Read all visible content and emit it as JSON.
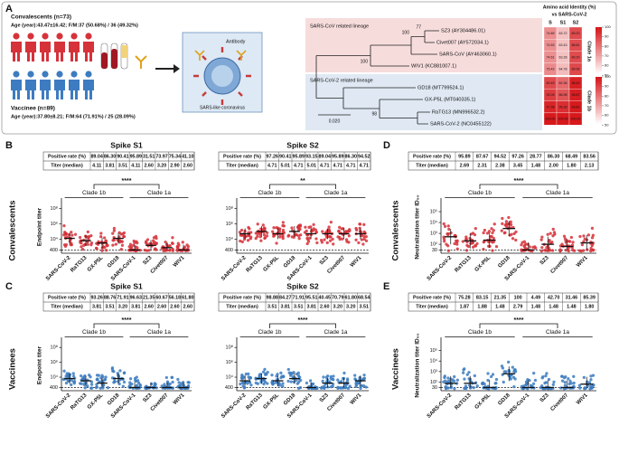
{
  "panel_a": {
    "letter": "A",
    "convalescents": {
      "title": "Convalescents (n=73)",
      "demographics": "Age (year):43.47±16.42; F/M:37 (50.68%) / 36 (49.32%)",
      "color": "#d6323a"
    },
    "vaccinees": {
      "title": "Vaccinee (n=89)",
      "demographics": "Age (year):37.80±8.21; F/M:64 (71.91%) / 25 (28.09%)",
      "color": "#3d7cc0"
    },
    "antibody_label": "Antibody",
    "virus_label": "SARS-like coronavirus",
    "tree": {
      "lineages": [
        "SARS-CoV related lineage",
        "SARS-CoV-2 related lineage"
      ],
      "leaves": [
        "SZ3 (AY304486.01)",
        "Civet007 (AY572034.1)",
        "SARS-CoV (AY463060.1)",
        "WIV1 (KC881007.1)",
        "GD18 (MT799524.1)",
        "GX-P5L (MT040335.1)",
        "RaTG13 (MN996532.2)",
        "SARS-CoV-2 (NC0455122)"
      ],
      "bootstraps": [
        "77",
        "100",
        "100",
        "98"
      ],
      "scale_bar": "0.020"
    },
    "identity": {
      "title_lines": [
        "Amino acid Identity (%)",
        "vs SARS-CoV-2"
      ],
      "columns": [
        "S",
        "S1",
        "S2"
      ],
      "clades": [
        "Clade 1a",
        "Clade 1b"
      ],
      "rows": [
        [
          "74.89",
          "63.72",
          "89.20"
        ],
        [
          "74.53",
          "63.43",
          "88.81"
        ],
        [
          "74.61",
          "63.28",
          "89.20"
        ],
        [
          "75.42",
          "64.78",
          "89.56"
        ],
        [
          "89.49",
          "82.36",
          "98.40"
        ],
        [
          "92.09",
          "86.98",
          "98.87"
        ],
        [
          "97.38",
          "95.33",
          "99.81"
        ],
        [
          "100.00",
          "100.00",
          "100.00"
        ]
      ],
      "scale": {
        "lim": [
          50,
          100
        ],
        "ticks": [
          100,
          90,
          80,
          70,
          60,
          50
        ],
        "color": "#d7191c"
      }
    }
  },
  "panels": [
    {
      "letter": "B",
      "group": "Convalescents",
      "ylabel": "Endpoint titer",
      "color": "#d6323a",
      "charts": [
        {
          "title": "Spike S1",
          "significance": "****",
          "clades": [
            "Clade 1b",
            "Clade 1a"
          ],
          "categories": [
            "SARS-CoV-2",
            "RaTG13",
            "GX-P5L",
            "GD18",
            "SARS-CoV-1",
            "SZ3",
            "Civet007",
            "WIV1"
          ],
          "table": {
            "rate_label": "Positive rate (%)",
            "rates": [
              "89.04",
              "86.30",
              "90.41",
              "95.89",
              "31.51",
              "73.97",
              "75.34",
              "41.10"
            ],
            "titer_label": "Titer (median)",
            "titers": [
              "4.11",
              "3.81",
              "3.51",
              "4.11",
              "2.60",
              "3.20",
              "2.90",
              "2.60"
            ]
          },
          "log": true,
          "ylim": [
            150,
            1000000000
          ],
          "yticks": [
            {
              "value": 100000000,
              "label": "10⁸"
            },
            {
              "value": 1000000,
              "label": "10⁶"
            },
            {
              "value": 10000,
              "label": "10⁴"
            },
            400
          ]
        },
        {
          "title": "Spike S2",
          "significance": "**",
          "clades": [
            "Clade 1b",
            "Clade 1a"
          ],
          "categories": [
            "SARS-CoV-2",
            "RaTG13",
            "GX-P5L",
            "GD18",
            "SARS-CoV-1",
            "SZ3",
            "Civet007",
            "WIV1"
          ],
          "table": {
            "rate_label": "Positive rate (%)",
            "rates": [
              "97.26",
              "90.41",
              "95.89",
              "93.15",
              "89.04",
              "95.89",
              "86.30",
              "94.52"
            ],
            "titer_label": "Titer (median)",
            "titers": [
              "4.71",
              "5.01",
              "4.71",
              "5.01",
              "4.71",
              "4.71",
              "4.71",
              "4.71"
            ]
          },
          "log": true,
          "ylim": [
            150,
            1000000000
          ],
          "yticks": [
            {
              "value": 100000000,
              "label": "10⁸"
            },
            {
              "value": 1000000,
              "label": "10⁶"
            },
            {
              "value": 10000,
              "label": "10⁴"
            },
            400
          ]
        }
      ]
    },
    {
      "letter": "D",
      "group": "Convalescents",
      "ylabel": "Neutralization titer ID₅₀",
      "color": "#d6323a",
      "charts": [
        {
          "significance": "****",
          "clades": [
            "Clade 1b",
            "Clade 1a"
          ],
          "categories": [
            "SARS-CoV-2",
            "RaTG13",
            "GX-P5L",
            "GD18",
            "SARS-CoV-1",
            "SZ3",
            "Civet007",
            "WIV1"
          ],
          "table": {
            "rate_label": "Positive rate (%)",
            "rates": [
              "95.89",
              "87.67",
              "94.52",
              "97.26",
              "28.77",
              "86.30",
              "68.49",
              "83.56"
            ],
            "titer_label": "Titer (median)",
            "titers": [
              "2.69",
              "2.31",
              "2.38",
              "3.45",
              "1.48",
              "2.00",
              "1.80",
              "2.13"
            ]
          },
          "log": true,
          "ylim": [
            15,
            1000000
          ],
          "yticks": [
            {
              "value": 100000,
              "label": "10⁵"
            },
            {
              "value": 10000,
              "label": "10⁴"
            },
            {
              "value": 1000,
              "label": "10³"
            },
            {
              "value": 100,
              "label": "10²"
            },
            30
          ]
        }
      ]
    },
    {
      "letter": "C",
      "group": "Vaccinees",
      "ylabel": "Endpoint titer",
      "color": "#3d7cc0",
      "charts": [
        {
          "title": "Spike S1",
          "significance": "****",
          "clades": [
            "Clade 1b",
            "Clade 1a"
          ],
          "categories": [
            "SARS-CoV-2",
            "RaTG13",
            "GX-P5L",
            "GD18",
            "SARS-CoV-1",
            "SZ3",
            "Civet007",
            "WIV1"
          ],
          "table": {
            "rate_label": "Positive rate (%)",
            "rates": [
              "93.26",
              "88.76",
              "71.91",
              "96.63",
              "21.35",
              "60.67",
              "56.18",
              "61.80"
            ],
            "titer_label": "Titer (median)",
            "titers": [
              "3.81",
              "3.51",
              "3.20",
              "3.81",
              "2.60",
              "2.60",
              "2.60",
              "2.60"
            ]
          },
          "log": true,
          "ylim": [
            150,
            1000000000
          ],
          "yticks": [
            {
              "value": 100000000,
              "label": "10⁸"
            },
            {
              "value": 1000000,
              "label": "10⁶"
            },
            {
              "value": 10000,
              "label": "10⁴"
            },
            400
          ]
        },
        {
          "title": "Spike S2",
          "significance": "****",
          "clades": [
            "Clade 1b",
            "Clade 1a"
          ],
          "categories": [
            "SARS-CoV-2",
            "RaTG13",
            "GX-P5L",
            "GD18",
            "SARS-CoV-1",
            "SZ3",
            "Civet007",
            "WIV1"
          ],
          "table": {
            "rate_label": "Positive rate (%)",
            "rates": [
              "98.88",
              "84.27",
              "71.91",
              "95.51",
              "40.45",
              "70.79",
              "61.80",
              "68.54"
            ],
            "titer_label": "Titer (median)",
            "titers": [
              "3.51",
              "3.81",
              "3.51",
              "3.81",
              "2.60",
              "3.20",
              "3.20",
              "3.51"
            ]
          },
          "log": true,
          "ylim": [
            150,
            1000000000
          ],
          "yticks": [
            {
              "value": 100000000,
              "label": "10⁸"
            },
            {
              "value": 1000000,
              "label": "10⁶"
            },
            {
              "value": 10000,
              "label": "10⁴"
            },
            400
          ]
        }
      ]
    },
    {
      "letter": "E",
      "group": "Vaccinees",
      "ylabel": "Neutralization titer ID₅₀",
      "color": "#3d7cc0",
      "charts": [
        {
          "significance": "****",
          "clades": [
            "Clade 1b",
            "Clade 1a"
          ],
          "categories": [
            "SARS-CoV-2",
            "RaTG13",
            "GX-P5L",
            "GD18",
            "SARS-CoV-1",
            "SZ3",
            "Civet007",
            "WIV1"
          ],
          "table": {
            "rate_label": "Positive rate (%)",
            "rates": [
              "75.28",
              "83.15",
              "21.35",
              "100",
              "4.49",
              "42.70",
              "31.46",
              "85.39"
            ],
            "titer_label": "Titer (median)",
            "titers": [
              "1.87",
              "1.88",
              "1.48",
              "2.79",
              "1.48",
              "1.48",
              "1.48",
              "1.80"
            ]
          },
          "log": true,
          "ylim": [
            15,
            1000000
          ],
          "yticks": [
            {
              "value": 100000,
              "label": "10⁵"
            },
            {
              "value": 10000,
              "label": "10⁴"
            },
            {
              "value": 1000,
              "label": "10³"
            },
            {
              "value": 100,
              "label": "10²"
            },
            30
          ]
        }
      ]
    }
  ]
}
